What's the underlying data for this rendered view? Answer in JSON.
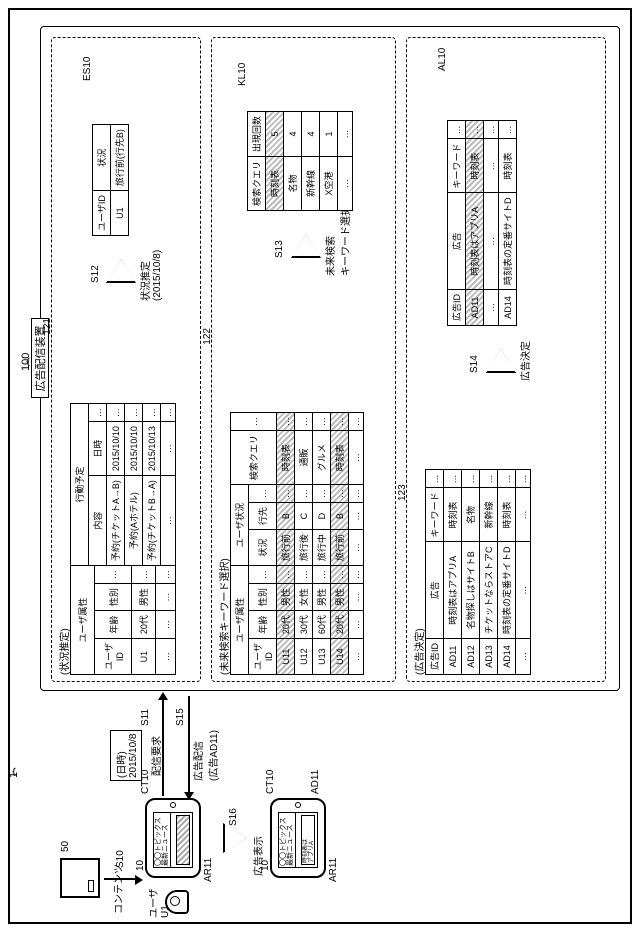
{
  "system_label": "1",
  "device_label": "100",
  "device_title": "広告配信装置",
  "server_label": "50",
  "phone_label": "10",
  "content_label_ct": "CT10",
  "ad_label_ad11": "AD11",
  "ar_label": "AR11",
  "user_label": "ユーザ\nU1",
  "content_arrow_label": "コンテンツ",
  "s10": "S10",
  "s11": "S11",
  "s11_sub": "(日時)\n2015/10/8",
  "s12": "S12",
  "s13": "S13",
  "s14": "S14",
  "s15": "S15",
  "s16": "S16",
  "delivery_request": "配信要求",
  "ad_delivery": "広告配信\n(広告AD11)",
  "ad_display": "広告表示",
  "estimate_label": "状況推定\n(2015/10/8)",
  "future_search_label": "未来検索\nキーワード選択",
  "ad_decision_label": "広告決定",
  "phone_screen_title": "〇〇トピックス\n最新ニュース",
  "phone_ad_text": "時刻表は\nアプリA",
  "section1": {
    "title": "(状況推定)",
    "num": "121",
    "attr_title": "ユーザ属性",
    "attr_cols": [
      "ユーザ\nID",
      "年齢",
      "性別",
      "…"
    ],
    "attr_rows": [
      [
        "U1",
        "20代",
        "男性",
        "…"
      ],
      [
        "…",
        "…",
        "…",
        "…"
      ]
    ],
    "plan_title": "行動予定",
    "plan_cols": [
      "内容",
      "日時",
      "…"
    ],
    "plan_rows": [
      [
        "予約(チケットA→B)",
        "2015/10/10",
        "…"
      ],
      [
        "予約(Aホテル)",
        "2015/10/10",
        "…"
      ],
      [
        "予約(チケットB→A)",
        "2015/10/13",
        "…"
      ],
      [
        "…",
        "…",
        "…"
      ]
    ],
    "es_label": "ES10",
    "result_cols": [
      "ユーザID",
      "状況"
    ],
    "result_rows": [
      [
        "U1",
        "旅行前(行先B)"
      ]
    ]
  },
  "section2": {
    "title": "(未来検索キーワード選択)",
    "num": "122",
    "cols_group1": "ユーザ属性",
    "cols_group2": "ユーザ状況",
    "cols": [
      "ユーザ\nID",
      "年齢",
      "性別",
      "…",
      "状況",
      "行先",
      "…",
      "検索クエリ",
      "…"
    ],
    "rows": [
      [
        "U11",
        "20代",
        "男性",
        "…",
        "旅行前",
        "B",
        "…",
        "時刻表",
        "…"
      ],
      [
        "U12",
        "30代",
        "女性",
        "…",
        "旅行後",
        "C",
        "…",
        "通販",
        "…"
      ],
      [
        "U13",
        "60代",
        "男性",
        "…",
        "旅行中",
        "D",
        "…",
        "グルメ",
        "…"
      ],
      [
        "U14",
        "20代",
        "男性",
        "…",
        "旅行前",
        "B",
        "…",
        "時刻表",
        "…"
      ],
      [
        "…",
        "…",
        "…",
        "…",
        "…",
        "…",
        "…",
        "…",
        "…"
      ]
    ],
    "hl_rows": [
      0,
      3
    ],
    "kl_label": "KL10",
    "kl_cols": [
      "検索クエリ",
      "出現回数"
    ],
    "kl_rows": [
      [
        "時刻表",
        "5"
      ],
      [
        "名物",
        "4"
      ],
      [
        "新幹線",
        "4"
      ],
      [
        "X空港",
        "1"
      ],
      [
        "…",
        "…"
      ]
    ],
    "kl_hl": 0
  },
  "section3": {
    "title": "(広告決定)",
    "num": "123",
    "cols": [
      "広告ID",
      "広告",
      "キーワード",
      "…"
    ],
    "rows": [
      [
        "AD11",
        "時刻表はアプリA",
        "時刻表",
        "…"
      ],
      [
        "AD12",
        "名物探しはサイトB",
        "名物",
        "…"
      ],
      [
        "AD13",
        "チケットならストアC",
        "新幹線",
        "…"
      ],
      [
        "AD14",
        "時刻表の定番サイトD",
        "時刻表",
        "…"
      ],
      [
        "…",
        "…",
        "…",
        "…"
      ]
    ],
    "al_label": "AL10",
    "al_cols": [
      "広告ID",
      "広告",
      "キーワード",
      "…"
    ],
    "al_rows": [
      [
        "AD11",
        "時刻表はアプリA",
        "時刻表",
        "…"
      ],
      [
        "…",
        "…",
        "…",
        "…"
      ],
      [
        "AD14",
        "時刻表の定番サイトD",
        "時刻表",
        "…"
      ]
    ],
    "al_hl": 0
  }
}
